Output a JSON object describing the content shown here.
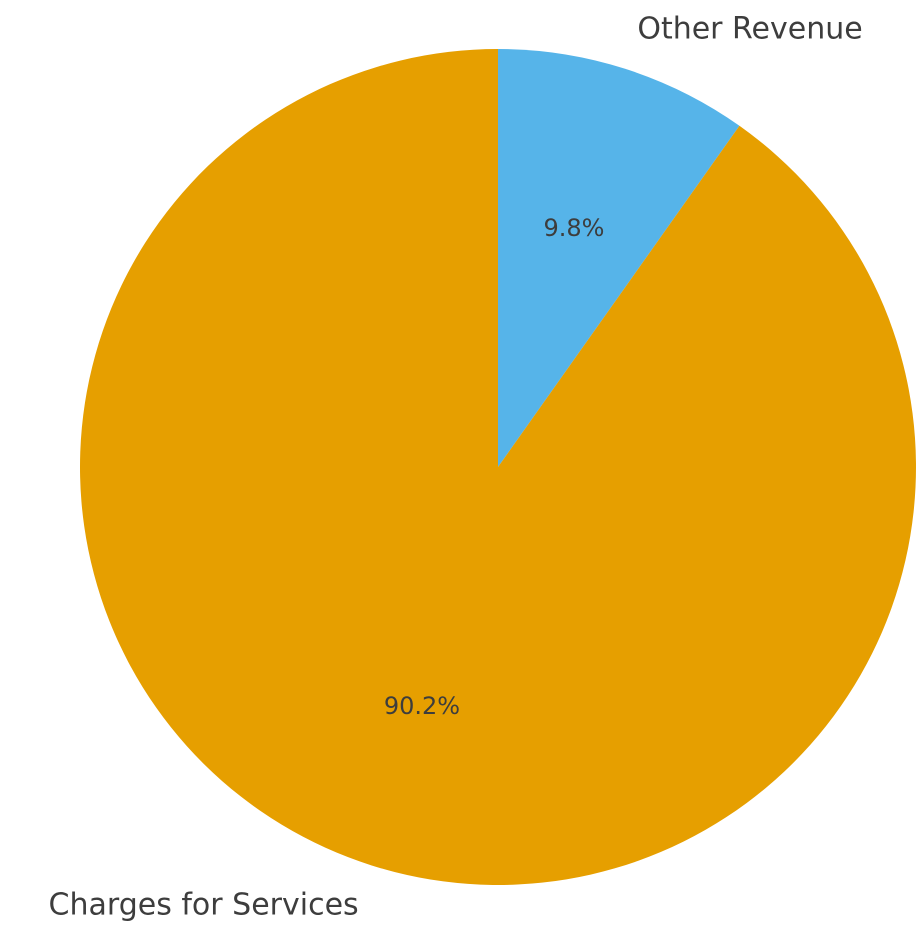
{
  "chart_data": {
    "type": "pie",
    "start_angle": "12 o'clock",
    "direction": "clockwise",
    "slices": [
      {
        "label": "Other Revenue",
        "value": 9.8,
        "pct_label": "9.8%",
        "color": "#56b4e9"
      },
      {
        "label": "Charges for Services",
        "value": 90.2,
        "pct_label": "90.2%",
        "color": "#e69f00"
      }
    ]
  }
}
